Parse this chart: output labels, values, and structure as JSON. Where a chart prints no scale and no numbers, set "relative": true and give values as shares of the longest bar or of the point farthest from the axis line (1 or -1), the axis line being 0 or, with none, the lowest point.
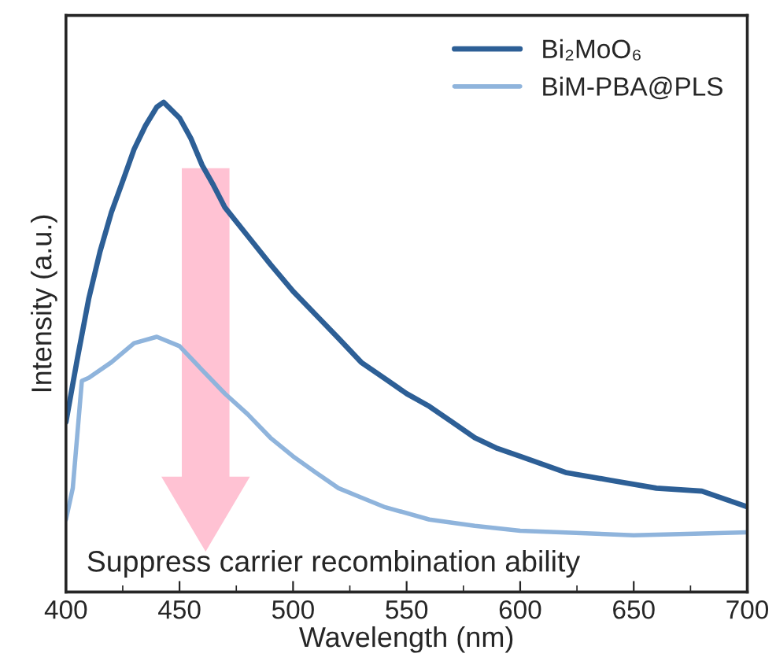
{
  "chart_data": {
    "type": "line",
    "relative": true,
    "xlabel": "Wavelength (nm)",
    "ylabel": "Intensity (a.u.)",
    "xlim": [
      400,
      700
    ],
    "xticks": [
      400,
      450,
      500,
      550,
      600,
      650,
      700
    ],
    "legend": "top right",
    "grid": false,
    "tick_labels": "x",
    "annotations": [
      "Suppress carrier recombination ability"
    ],
    "series": [
      {
        "name": "Bi₂MoO₆",
        "color": "#2d5f96",
        "x": [
          400,
          405,
          410,
          415,
          420,
          425,
          430,
          435,
          440,
          443,
          450,
          455,
          460,
          465,
          470,
          480,
          490,
          500,
          510,
          520,
          530,
          540,
          550,
          560,
          570,
          580,
          590,
          600,
          620,
          640,
          660,
          680,
          700
        ],
        "values": [
          0.347,
          0.476,
          0.598,
          0.695,
          0.775,
          0.839,
          0.904,
          0.952,
          0.99,
          1.0,
          0.968,
          0.926,
          0.871,
          0.83,
          0.785,
          0.727,
          0.669,
          0.614,
          0.566,
          0.518,
          0.469,
          0.437,
          0.405,
          0.379,
          0.347,
          0.315,
          0.293,
          0.277,
          0.244,
          0.228,
          0.212,
          0.206,
          0.174
        ]
      },
      {
        "name": "BiM-PBA@PLS",
        "color": "#8fb4dc",
        "x": [
          400,
          403,
          407,
          410,
          420,
          430,
          440,
          450,
          460,
          470,
          480,
          490,
          500,
          510,
          520,
          530,
          540,
          560,
          580,
          600,
          650,
          700
        ],
        "values": [
          0.148,
          0.212,
          0.431,
          0.437,
          0.469,
          0.508,
          0.521,
          0.502,
          0.453,
          0.405,
          0.363,
          0.315,
          0.277,
          0.244,
          0.212,
          0.193,
          0.174,
          0.148,
          0.135,
          0.125,
          0.116,
          0.122
        ]
      }
    ]
  }
}
